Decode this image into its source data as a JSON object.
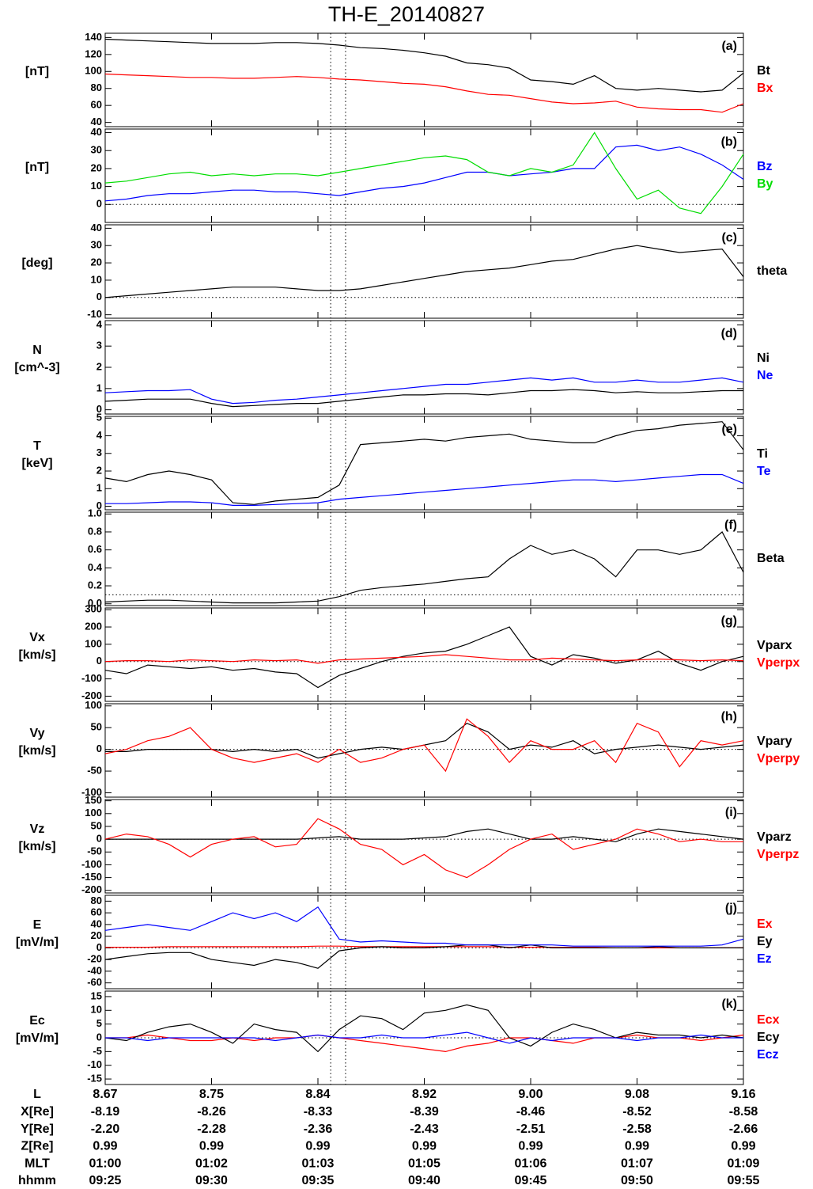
{
  "title": "TH-E_20140827",
  "x": [
    "09:25:00",
    "09:26:00",
    "09:27:00",
    "09:28:00",
    "09:29:00",
    "09:30:00",
    "09:31:00",
    "09:32:00",
    "09:33:00",
    "09:34:00",
    "09:35:00",
    "09:36:00",
    "09:37:00",
    "09:38:00",
    "09:39:00",
    "09:40:00",
    "09:41:00",
    "09:42:00",
    "09:43:00",
    "09:44:00",
    "09:45:00",
    "09:46:00",
    "09:47:00",
    "09:48:00",
    "09:49:00",
    "09:50:00",
    "09:51:00",
    "09:52:00",
    "09:53:00",
    "09:54:00",
    "09:55:00"
  ],
  "xlim": [
    "09:25:00",
    "09:55:00"
  ],
  "event_times": [
    "09:35:36",
    "09:36:18"
  ],
  "chart_data": [
    {
      "type": "line",
      "panel_label": "(a)",
      "ylabel": [
        "[nT]"
      ],
      "ylim": [
        35,
        145
      ],
      "yticks": [
        40,
        60,
        80,
        100,
        120,
        140
      ],
      "series": [
        {
          "name": "Bt",
          "color": "#000000",
          "values": [
            138,
            137,
            136,
            135,
            134,
            133,
            133,
            133,
            134,
            134,
            133,
            131,
            128,
            127,
            125,
            122,
            118,
            110,
            108,
            104,
            90,
            88,
            85,
            95,
            80,
            78,
            80,
            78,
            76,
            78,
            98
          ]
        },
        {
          "name": "Bx",
          "color": "#ff0000",
          "values": [
            97,
            96,
            95,
            94,
            93,
            93,
            92,
            92,
            93,
            94,
            93,
            91,
            90,
            88,
            86,
            85,
            82,
            77,
            73,
            72,
            68,
            64,
            62,
            63,
            65,
            58,
            56,
            55,
            55,
            52,
            62
          ]
        }
      ]
    },
    {
      "type": "line",
      "panel_label": "(b)",
      "ylabel": [
        "[nT]"
      ],
      "ylim": [
        -10,
        42
      ],
      "yticks": [
        0,
        10,
        20,
        30,
        40
      ],
      "hline": 0,
      "series": [
        {
          "name": "Bz",
          "color": "#0000ff",
          "values": [
            2,
            3,
            5,
            6,
            6,
            7,
            8,
            8,
            7,
            7,
            6,
            5,
            7,
            9,
            10,
            12,
            15,
            18,
            18,
            16,
            17,
            18,
            20,
            20,
            32,
            33,
            30,
            32,
            28,
            22,
            14
          ]
        },
        {
          "name": "By",
          "color": "#00dd00",
          "values": [
            12,
            13,
            15,
            17,
            18,
            16,
            17,
            16,
            17,
            17,
            16,
            18,
            20,
            22,
            24,
            26,
            27,
            25,
            18,
            16,
            20,
            18,
            22,
            40,
            20,
            3,
            8,
            -2,
            -5,
            10,
            28
          ]
        }
      ]
    },
    {
      "type": "line",
      "panel_label": "(c)",
      "ylabel": [
        "[deg]"
      ],
      "ylim": [
        -12,
        42
      ],
      "yticks": [
        -10,
        0,
        10,
        20,
        30,
        40
      ],
      "hline": 0,
      "series": [
        {
          "name": "theta",
          "color": "#000000",
          "values": [
            0,
            1,
            2,
            3,
            4,
            5,
            6,
            6,
            6,
            5,
            4,
            4,
            5,
            7,
            9,
            11,
            13,
            15,
            16,
            17,
            19,
            21,
            22,
            25,
            28,
            30,
            28,
            26,
            27,
            28,
            12
          ]
        }
      ]
    },
    {
      "type": "line",
      "panel_label": "(d)",
      "ylabel": [
        "N",
        "[cm^-3]"
      ],
      "ylim": [
        -0.2,
        4.2
      ],
      "yticks": [
        0,
        1,
        2,
        3,
        4
      ],
      "series": [
        {
          "name": "Ni",
          "color": "#000000",
          "values": [
            0.4,
            0.45,
            0.5,
            0.5,
            0.5,
            0.3,
            0.15,
            0.2,
            0.25,
            0.3,
            0.3,
            0.4,
            0.5,
            0.6,
            0.7,
            0.7,
            0.75,
            0.75,
            0.7,
            0.8,
            0.9,
            0.9,
            0.95,
            0.9,
            0.8,
            0.85,
            0.8,
            0.8,
            0.85,
            0.9,
            0.9
          ]
        },
        {
          "name": "Ne",
          "color": "#0000ff",
          "values": [
            0.8,
            0.85,
            0.9,
            0.9,
            0.95,
            0.5,
            0.3,
            0.35,
            0.45,
            0.5,
            0.6,
            0.7,
            0.8,
            0.9,
            1.0,
            1.1,
            1.2,
            1.2,
            1.3,
            1.4,
            1.5,
            1.4,
            1.5,
            1.3,
            1.3,
            1.4,
            1.3,
            1.3,
            1.4,
            1.5,
            1.3
          ]
        }
      ]
    },
    {
      "type": "line",
      "panel_label": "(e)",
      "ylabel": [
        "T",
        "[keV]"
      ],
      "ylim": [
        -0.2,
        5.1
      ],
      "yticks": [
        0,
        1,
        2,
        3,
        4,
        5
      ],
      "series": [
        {
          "name": "Ti",
          "color": "#000000",
          "values": [
            1.6,
            1.4,
            1.8,
            2.0,
            1.8,
            1.5,
            0.2,
            0.1,
            0.3,
            0.4,
            0.5,
            1.2,
            3.5,
            3.6,
            3.7,
            3.8,
            3.7,
            3.9,
            4.0,
            4.1,
            3.8,
            3.7,
            3.6,
            3.6,
            4.0,
            4.3,
            4.4,
            4.6,
            4.7,
            4.8,
            3.2
          ]
        },
        {
          "name": "Te",
          "color": "#0000ff",
          "values": [
            0.15,
            0.15,
            0.2,
            0.25,
            0.25,
            0.2,
            0.05,
            0.05,
            0.1,
            0.15,
            0.2,
            0.4,
            0.5,
            0.6,
            0.7,
            0.8,
            0.9,
            1.0,
            1.1,
            1.2,
            1.3,
            1.4,
            1.5,
            1.5,
            1.4,
            1.5,
            1.6,
            1.7,
            1.8,
            1.8,
            1.3
          ]
        }
      ]
    },
    {
      "type": "line",
      "panel_label": "(f)",
      "ylim": [
        -0.02,
        1.02
      ],
      "yticks": [
        {
          "value": 0,
          "label": "0.0"
        },
        0.2,
        0.4,
        0.6,
        0.8,
        {
          "value": 1,
          "label": "1.0"
        }
      ],
      "hline": 0.1,
      "series": [
        {
          "name": "Beta",
          "color": "#000000",
          "values": [
            0.02,
            0.03,
            0.04,
            0.04,
            0.03,
            0.02,
            0.01,
            0.01,
            0.01,
            0.02,
            0.03,
            0.08,
            0.15,
            0.18,
            0.2,
            0.22,
            0.25,
            0.28,
            0.3,
            0.5,
            0.65,
            0.55,
            0.6,
            0.5,
            0.3,
            0.6,
            0.6,
            0.55,
            0.6,
            0.8,
            0.35
          ]
        }
      ]
    },
    {
      "type": "line",
      "panel_label": "(g)",
      "ylabel": [
        "Vx",
        "[km/s]"
      ],
      "ylim": [
        -230,
        310
      ],
      "yticks": [
        -200,
        -100,
        0,
        100,
        200,
        300
      ],
      "hline": 0,
      "series": [
        {
          "name": "Vparx",
          "color": "#000000",
          "values": [
            -50,
            -70,
            -20,
            -30,
            -40,
            -30,
            -50,
            -40,
            -60,
            -70,
            -150,
            -80,
            -40,
            0,
            30,
            50,
            60,
            100,
            150,
            200,
            30,
            -20,
            40,
            20,
            -10,
            10,
            60,
            -10,
            -50,
            0,
            30
          ]
        },
        {
          "name": "Vperpx",
          "color": "#ff0000",
          "values": [
            0,
            5,
            5,
            0,
            10,
            5,
            0,
            10,
            5,
            10,
            -10,
            10,
            15,
            20,
            25,
            30,
            40,
            30,
            20,
            10,
            10,
            20,
            15,
            10,
            5,
            10,
            15,
            10,
            5,
            10,
            5
          ]
        }
      ]
    },
    {
      "type": "line",
      "panel_label": "(h)",
      "ylabel": [
        "Vy",
        "[km/s]"
      ],
      "ylim": [
        -110,
        105
      ],
      "yticks": [
        -100,
        -50,
        0,
        50,
        100
      ],
      "hline": 0,
      "series": [
        {
          "name": "Vpary",
          "color": "#000000",
          "values": [
            -5,
            -5,
            0,
            0,
            0,
            0,
            -5,
            0,
            -5,
            0,
            -20,
            -10,
            0,
            5,
            0,
            10,
            20,
            60,
            40,
            0,
            10,
            5,
            20,
            -10,
            0,
            5,
            10,
            5,
            0,
            5,
            10
          ]
        },
        {
          "name": "Vperpy",
          "color": "#ff0000",
          "values": [
            -10,
            0,
            20,
            30,
            50,
            0,
            -20,
            -30,
            -20,
            -10,
            -30,
            0,
            -30,
            -20,
            0,
            10,
            -50,
            70,
            30,
            -30,
            20,
            0,
            0,
            20,
            -30,
            60,
            40,
            -40,
            20,
            10,
            20
          ]
        }
      ]
    },
    {
      "type": "line",
      "panel_label": "(i)",
      "ylabel": [
        "Vz",
        "[km/s]"
      ],
      "ylim": [
        -210,
        155
      ],
      "yticks": [
        -200,
        -150,
        -100,
        -50,
        0,
        50,
        100,
        150
      ],
      "hline": 0,
      "series": [
        {
          "name": "Vparz",
          "color": "#000000",
          "values": [
            0,
            0,
            0,
            0,
            0,
            0,
            0,
            0,
            0,
            0,
            5,
            10,
            0,
            0,
            0,
            5,
            10,
            30,
            40,
            20,
            0,
            0,
            10,
            0,
            -10,
            20,
            40,
            30,
            20,
            10,
            0
          ]
        },
        {
          "name": "Vperpz",
          "color": "#ff0000",
          "values": [
            0,
            20,
            10,
            -20,
            -70,
            -20,
            0,
            10,
            -30,
            -20,
            80,
            40,
            -20,
            -40,
            -100,
            -60,
            -120,
            -150,
            -100,
            -40,
            0,
            20,
            -40,
            -20,
            0,
            40,
            20,
            -10,
            0,
            -10,
            -10
          ]
        }
      ]
    },
    {
      "type": "line",
      "panel_label": "(j)",
      "ylabel": [
        "E",
        "[mV/m]"
      ],
      "ylim": [
        -70,
        90
      ],
      "yticks": [
        -60,
        -40,
        -20,
        0,
        20,
        40,
        60,
        80
      ],
      "hline": 0,
      "series": [
        {
          "name": "Ex",
          "color": "#ff0000",
          "values": [
            1,
            1,
            1,
            2,
            2,
            2,
            2,
            2,
            2,
            2,
            3,
            3,
            2,
            2,
            2,
            2,
            2,
            2,
            2,
            1,
            1,
            1,
            1,
            1,
            0,
            0,
            0,
            0,
            0,
            0,
            0
          ]
        },
        {
          "name": "Ey",
          "color": "#000000",
          "values": [
            -20,
            -15,
            -10,
            -8,
            -8,
            -20,
            -25,
            -30,
            -20,
            -25,
            -35,
            -5,
            0,
            2,
            0,
            0,
            2,
            5,
            5,
            0,
            5,
            0,
            0,
            0,
            0,
            0,
            2,
            0,
            0,
            0,
            0
          ]
        },
        {
          "name": "Ez",
          "color": "#0000ff",
          "values": [
            30,
            35,
            40,
            35,
            30,
            45,
            60,
            50,
            60,
            45,
            70,
            15,
            10,
            12,
            10,
            8,
            8,
            5,
            5,
            5,
            5,
            5,
            3,
            3,
            3,
            3,
            3,
            3,
            3,
            5,
            15
          ]
        }
      ]
    },
    {
      "type": "line",
      "panel_label": "(k)",
      "ylabel": [
        "Ec",
        "[mV/m]"
      ],
      "ylim": [
        -17,
        17
      ],
      "yticks": [
        -15,
        -10,
        -5,
        0,
        5,
        10,
        15
      ],
      "hline": 0,
      "series": [
        {
          "name": "Ecx",
          "color": "#ff0000",
          "values": [
            0,
            0,
            1,
            0,
            -1,
            -1,
            0,
            -1,
            0,
            0,
            1,
            0,
            -1,
            -2,
            -3,
            -4,
            -5,
            -3,
            -2,
            0,
            0,
            -1,
            -2,
            0,
            0,
            1,
            0,
            0,
            -1,
            0,
            1
          ]
        },
        {
          "name": "Ecy",
          "color": "#000000",
          "values": [
            0,
            -1,
            2,
            4,
            5,
            2,
            -2,
            5,
            3,
            2,
            -5,
            3,
            8,
            7,
            3,
            9,
            10,
            12,
            10,
            0,
            -3,
            2,
            5,
            3,
            0,
            2,
            1,
            1,
            0,
            1,
            0
          ]
        },
        {
          "name": "Ecz",
          "color": "#0000ff",
          "values": [
            0,
            0,
            -1,
            0,
            0,
            0,
            0,
            0,
            -1,
            0,
            1,
            0,
            0,
            1,
            0,
            0,
            1,
            2,
            0,
            -2,
            0,
            -1,
            0,
            0,
            0,
            -1,
            0,
            0,
            1,
            0,
            0
          ]
        }
      ]
    }
  ],
  "ephemeris": [
    {
      "label": "L",
      "values": [
        "8.67",
        "8.75",
        "8.84",
        "8.92",
        "9.00",
        "9.08",
        "9.16"
      ]
    },
    {
      "label": "X[Re]",
      "values": [
        "-8.19",
        "-8.26",
        "-8.33",
        "-8.39",
        "-8.46",
        "-8.52",
        "-8.58"
      ]
    },
    {
      "label": "Y[Re]",
      "values": [
        "-2.20",
        "-2.28",
        "-2.36",
        "-2.43",
        "-2.51",
        "-2.58",
        "-2.66"
      ]
    },
    {
      "label": "Z[Re]",
      "values": [
        "0.99",
        "0.99",
        "0.99",
        "0.99",
        "0.99",
        "0.99",
        "0.99"
      ]
    },
    {
      "label": "MLT",
      "values": [
        "01:00",
        "01:02",
        "01:03",
        "01:05",
        "01:06",
        "01:07",
        "01:09"
      ]
    },
    {
      "label": "hhmm",
      "values": [
        "09:25",
        "09:30",
        "09:35",
        "09:40",
        "09:45",
        "09:50",
        "09:55"
      ]
    }
  ]
}
